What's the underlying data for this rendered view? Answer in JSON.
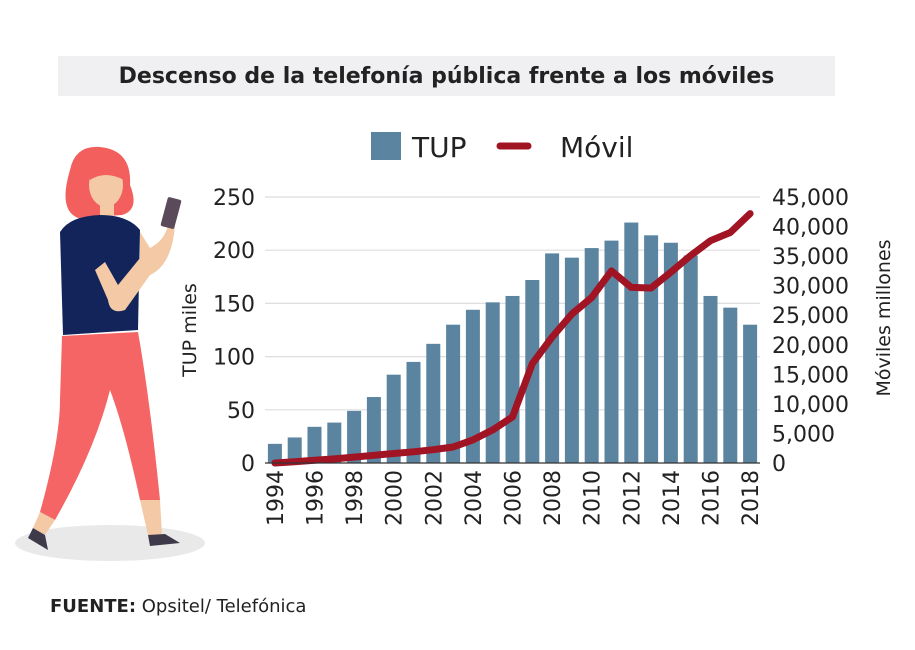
{
  "title": "Descenso de la telefonía pública frente a los móviles",
  "source": {
    "label": "FUENTE:",
    "text": " Opsitel/ Telefónica"
  },
  "colors": {
    "bar": "#5b84a0",
    "line": "#a01424",
    "title_bg": "#f0f0f2"
  },
  "chart_data": {
    "type": "bar+line",
    "title": "Descenso de la telefonía pública frente a los móviles",
    "legend": {
      "placement": "top",
      "entries": [
        "TUP",
        "Móvil"
      ]
    },
    "ylabel_left": "TUP miles",
    "ylabel_right": "Móviles millones",
    "ylim_left": [
      0,
      250
    ],
    "ylim_right": [
      0,
      45000
    ],
    "yticks_left": [
      "0",
      "50",
      "100",
      "150",
      "200",
      "250"
    ],
    "yticks_right": [
      "0",
      "5,000",
      "10,000",
      "15,000",
      "20,000",
      "25,000",
      "30,000",
      "35,000",
      "40,000",
      "45,000"
    ],
    "grid": true,
    "x": [
      1994,
      1995,
      1996,
      1997,
      1998,
      1999,
      2000,
      2001,
      2002,
      2003,
      2004,
      2005,
      2006,
      2007,
      2008,
      2009,
      2010,
      2011,
      2012,
      2013,
      2014,
      2015,
      2016,
      2017,
      2018
    ],
    "xticks": [
      "1994",
      "1996",
      "1998",
      "2000",
      "2002",
      "2004",
      "2006",
      "2008",
      "2010",
      "2012",
      "2014",
      "2016",
      "2018"
    ],
    "series": [
      {
        "name": "TUP",
        "type": "bar",
        "axis": "left",
        "values": [
          18,
          24,
          34,
          38,
          49,
          62,
          83,
          95,
          112,
          130,
          144,
          151,
          157,
          172,
          197,
          193,
          202,
          209,
          226,
          214,
          207,
          195,
          157,
          146,
          130
        ]
      },
      {
        "name": "Móvil",
        "type": "line",
        "axis": "right",
        "values": [
          0,
          200,
          450,
          700,
          1000,
          1300,
          1600,
          1900,
          2250,
          2700,
          3900,
          5600,
          7800,
          16800,
          21300,
          25200,
          28000,
          32500,
          29700,
          29600,
          32300,
          35100,
          37600,
          39000,
          42200
        ]
      }
    ]
  }
}
